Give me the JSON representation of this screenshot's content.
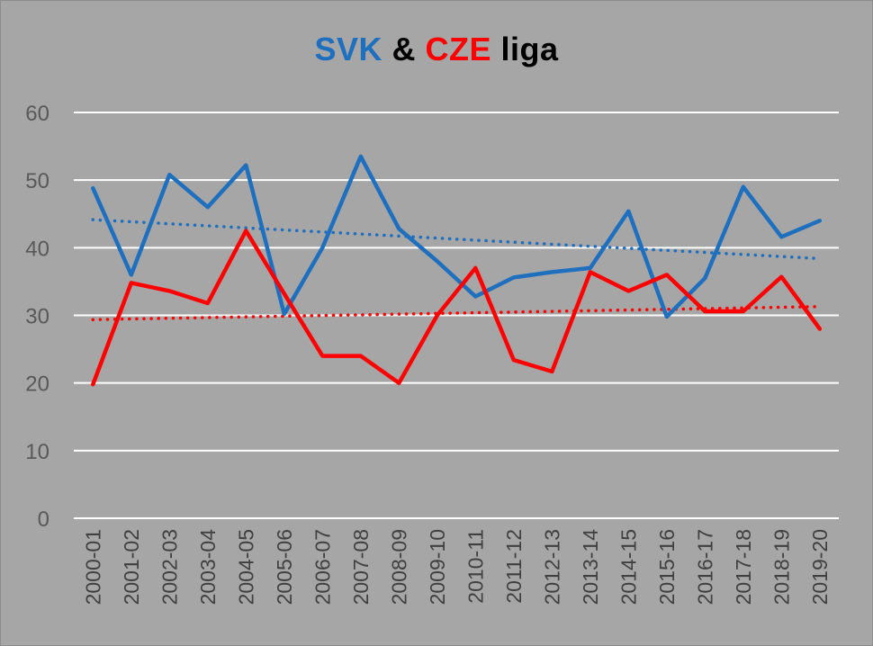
{
  "chart_data": {
    "type": "line",
    "title_parts": [
      {
        "text": "SVK",
        "color": "#1f6fbf"
      },
      {
        "text": " & ",
        "color": "#000000"
      },
      {
        "text": "CZE",
        "color": "#ff0000"
      },
      {
        "text": " liga",
        "color": "#000000"
      }
    ],
    "categories": [
      "2000-01",
      "2001-02",
      "2002-03",
      "2003-04",
      "2004-05",
      "2005-06",
      "2006-07",
      "2007-08",
      "2008-09",
      "2009-10",
      "2010-11",
      "2011-12",
      "2012-13",
      "2013-14",
      "2014-15",
      "2015-16",
      "2016-17",
      "2017-18",
      "2018-19",
      "2019-20"
    ],
    "ylim": [
      0,
      60
    ],
    "yticks": [
      0,
      10,
      20,
      30,
      40,
      50,
      60
    ],
    "grid": true,
    "series": [
      {
        "color": "#1f6fbf",
        "trendline": true,
        "values": [
          48.8,
          36.0,
          50.8,
          46.0,
          52.2,
          30.2,
          40.0,
          53.5,
          42.8,
          38.0,
          32.8,
          35.6,
          36.4,
          37.0,
          45.4,
          29.8,
          35.5,
          49.0,
          41.6,
          44.0
        ]
      },
      {
        "color": "#ff0000",
        "trendline": true,
        "values": [
          19.8,
          34.8,
          33.6,
          31.8,
          42.5,
          33.2,
          24.0,
          24.0,
          20.0,
          30.0,
          37.0,
          23.4,
          21.7,
          36.4,
          33.6,
          36.0,
          30.6,
          30.6,
          35.7,
          28.0
        ]
      }
    ]
  }
}
